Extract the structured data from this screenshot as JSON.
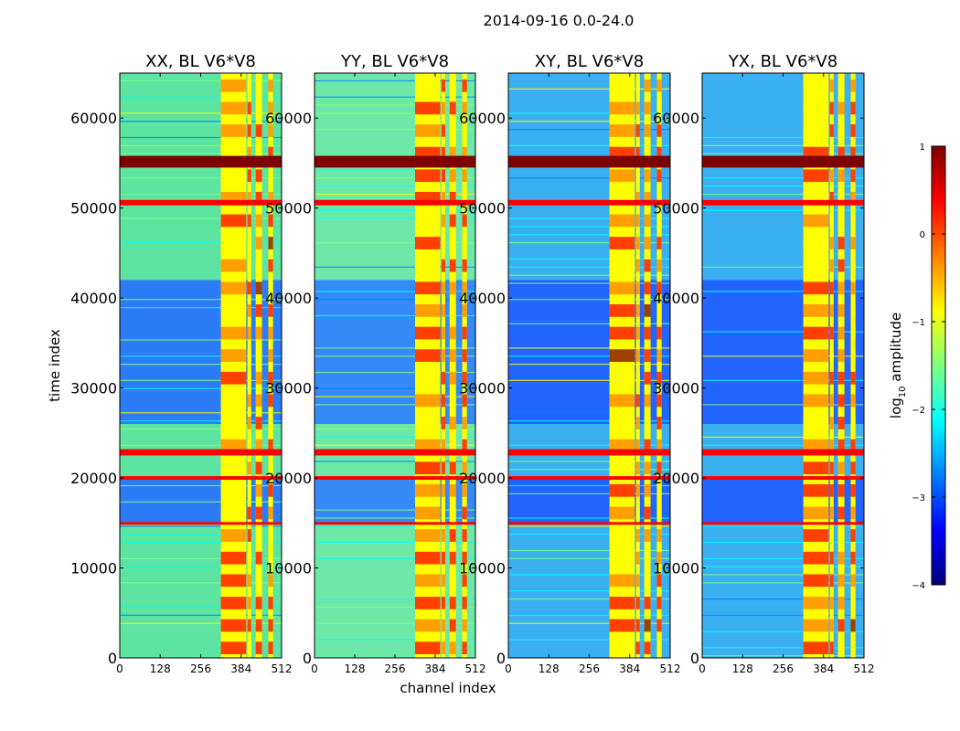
{
  "chart_data": {
    "type": "heatmap",
    "suptitle": "2014-09-16 0.0-24.0",
    "xlabel": "channel index",
    "ylabel": "time index",
    "xlim": [
      0,
      512
    ],
    "ylim": [
      0,
      65000
    ],
    "xticks": [
      0,
      128,
      256,
      384,
      512
    ],
    "yticks": [
      0,
      10000,
      20000,
      30000,
      40000,
      50000,
      60000
    ],
    "panels": [
      {
        "title": "XX, BL V6*V8",
        "pol": "XX",
        "background": "#5ce4a0",
        "upper_background": "#2670ff"
      },
      {
        "title": "YY, BL V6*V8",
        "pol": "YY",
        "background": "#6ee8a8",
        "upper_background": "#2f80ff"
      },
      {
        "title": "XY, BL V6*V8",
        "pol": "XY",
        "background": "#3ab0f0",
        "upper_background": "#1f5cff"
      },
      {
        "title": "YX, BL V6*V8",
        "pol": "YX",
        "background": "#3ab0f0",
        "upper_background": "#1f5cff"
      }
    ],
    "colorbar": {
      "label_main": "log",
      "label_sub": "10",
      "label_rest": " amplitude",
      "range": [
        -4,
        1
      ],
      "ticks": [
        1,
        0,
        -1,
        -2,
        -3,
        -4
      ],
      "tick_labels": [
        "1",
        "0",
        "−1",
        "−2",
        "−3",
        "−4"
      ],
      "colormap": [
        "#00007f",
        "#0000ff",
        "#007fff",
        "#00ffff",
        "#7fff7f",
        "#ffff00",
        "#ff7f00",
        "#ff0000",
        "#7f0000"
      ]
    },
    "bright_channel_bands": [
      [
        320,
        400
      ],
      [
        404,
        416
      ],
      [
        430,
        450
      ],
      [
        470,
        485
      ]
    ],
    "flagged_time_bands": [
      {
        "t0": 54500,
        "t1": 55800,
        "value": 1.0
      },
      {
        "t0": 50300,
        "t1": 50900,
        "value": 0.4
      },
      {
        "t0": 22500,
        "t1": 23200,
        "value": 0.3
      },
      {
        "t0": 19800,
        "t1": 20200,
        "value": 0.2
      },
      {
        "t0": 14800,
        "t1": 15100,
        "value": 0.1
      }
    ]
  }
}
